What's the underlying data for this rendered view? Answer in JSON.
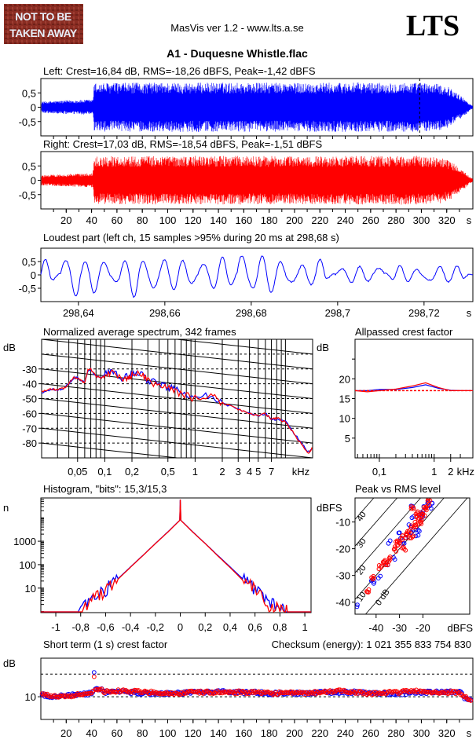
{
  "header": {
    "logo_text": "NOT TO BE TAKEN AWAY",
    "app_title": "MasVis ver 1.2 - www.lts.a.se",
    "brand": "LTS",
    "file_title": "A1 - Duquesne Whistle.flac"
  },
  "colors": {
    "left": "#0000ff",
    "right": "#ff0000",
    "logo_bg": "#8a2c22"
  },
  "chart_data": [
    {
      "id": "left-waveform",
      "type": "area",
      "title": "Left: Crest=16,84 dB, RMS=-18,26 dBFS, Peak=-1,42 dBFS",
      "xlabel": "s",
      "ylim": [
        -1,
        1
      ],
      "xlim": [
        0,
        340.6
      ],
      "yticks": [
        "0,5",
        "0",
        "-0,5"
      ],
      "ytick_values": [
        0.5,
        0,
        -0.5
      ],
      "marker_time": 298.68,
      "envelope_time": [
        0,
        10,
        20,
        30,
        41,
        42,
        60,
        100,
        150,
        200,
        250,
        300,
        315,
        322,
        328,
        334,
        338,
        340.6
      ],
      "envelope_amp": [
        0.2,
        0.22,
        0.24,
        0.25,
        0.27,
        0.85,
        0.85,
        0.86,
        0.86,
        0.85,
        0.86,
        0.86,
        0.8,
        0.7,
        0.5,
        0.3,
        0.12,
        0.05
      ]
    },
    {
      "id": "right-waveform",
      "type": "area",
      "title": "Right: Crest=17,03 dB, RMS=-18,54 dBFS, Peak=-1,51 dBFS",
      "ylim": [
        -1,
        1
      ],
      "xlim": [
        0,
        340.6
      ],
      "yticks": [
        "0,5",
        "0",
        "-0,5"
      ],
      "ytick_values": [
        0.5,
        0,
        -0.5
      ],
      "xticks": [
        "20",
        "40",
        "60",
        "80",
        "100",
        "120",
        "140",
        "160",
        "180",
        "200",
        "220",
        "240",
        "260",
        "280",
        "300",
        "320"
      ],
      "xtick_values": [
        20,
        40,
        60,
        80,
        100,
        120,
        140,
        160,
        180,
        200,
        220,
        240,
        260,
        280,
        300,
        320
      ],
      "xunit": "s",
      "envelope_time": [
        0,
        10,
        20,
        30,
        41,
        42,
        60,
        100,
        150,
        200,
        250,
        300,
        315,
        322,
        328,
        334,
        338,
        340.6
      ],
      "envelope_amp": [
        0.18,
        0.2,
        0.22,
        0.23,
        0.25,
        0.84,
        0.84,
        0.85,
        0.85,
        0.84,
        0.85,
        0.85,
        0.8,
        0.7,
        0.5,
        0.3,
        0.12,
        0.05
      ]
    },
    {
      "id": "loudest-part",
      "type": "line",
      "title": "Loudest part (left  ch, 15 samples >95% during 20 ms at 298,68 s)",
      "xlim": [
        298.6313,
        298.7313
      ],
      "ylim": [
        -1,
        1
      ],
      "xticks": [
        "298,64",
        "298,66",
        "298,68",
        "298,7",
        "298,72"
      ],
      "xtick_values": [
        298.64,
        298.66,
        298.68,
        298.7,
        298.72
      ],
      "xunit": "s",
      "yticks": [
        "0,5",
        "0",
        "-0,5"
      ],
      "ytick_values": [
        0.5,
        0,
        -0.5
      ],
      "cycle_peaks": [
        0.48,
        0.65,
        0.38,
        0.55,
        0.45,
        0.5,
        0.58,
        0.45,
        0.5,
        0.55,
        0.82,
        0.62,
        0.5,
        0.35,
        0.5,
        0.3,
        0.2,
        0.35,
        0.25,
        0.2,
        0.27,
        0.25
      ],
      "cycle_troughs": [
        -0.15,
        -0.78,
        -0.62,
        -0.3,
        -0.72,
        -0.6,
        -0.45,
        -0.35,
        -0.45,
        -0.3,
        -0.55,
        -0.55,
        -0.38,
        -0.25,
        -0.12,
        -0.2,
        -0.18,
        -0.1,
        -0.15,
        -0.3,
        -0.15,
        -0.1
      ]
    },
    {
      "id": "spectrum",
      "type": "line",
      "title": "Normalized average spectrum, 342 frames",
      "ylabel": "dB",
      "xunit": "kHz",
      "xscale": "log",
      "xlim": [
        0.02,
        20
      ],
      "ylim": [
        -90,
        -10
      ],
      "yticks": [
        "-30",
        "-40",
        "-50",
        "-60",
        "-70",
        "-80"
      ],
      "ytick_values": [
        -30,
        -40,
        -50,
        -60,
        -70,
        -80
      ],
      "xticks": [
        "0,05",
        "0,1",
        "0,2",
        "0,5",
        "1",
        "2",
        "3",
        "4",
        "5",
        "7"
      ],
      "xtick_values": [
        0.05,
        0.1,
        0.2,
        0.5,
        1,
        2,
        3,
        4,
        5,
        7
      ],
      "freq_khz": [
        0.02,
        0.025,
        0.03,
        0.035,
        0.04,
        0.045,
        0.05,
        0.055,
        0.06,
        0.065,
        0.07,
        0.08,
        0.09,
        0.1,
        0.12,
        0.15,
        0.18,
        0.2,
        0.25,
        0.3,
        0.4,
        0.5,
        0.6,
        0.8,
        1,
        1.5,
        2,
        3,
        4,
        5,
        6,
        7,
        8,
        10,
        12,
        15,
        18,
        20
      ],
      "series": [
        {
          "values": [
            -46,
            -44,
            -44,
            -43,
            -40,
            -36,
            -36,
            -38,
            -39,
            -32,
            -30,
            -35,
            -36,
            -34,
            -31,
            -37,
            -35,
            -33,
            -32,
            -38,
            -40,
            -42,
            -44,
            -47,
            -47,
            -48,
            -53,
            -57,
            -60,
            -62,
            -60,
            -64,
            -64,
            -65,
            -72,
            -80,
            -86,
            -84
          ]
        },
        {
          "values": [
            -45,
            -44,
            -44,
            -43,
            -40,
            -36,
            -36,
            -38,
            -39,
            -31,
            -30,
            -35,
            -36,
            -35,
            -32,
            -37,
            -36,
            -34,
            -33,
            -38,
            -41,
            -42,
            -45,
            -48,
            -50,
            -48,
            -53,
            -57,
            -60,
            -62,
            -60,
            -64,
            -63,
            -66,
            -72,
            -81,
            -87,
            -83
          ]
        }
      ]
    },
    {
      "id": "allpassed-crest",
      "type": "line",
      "title": "Allpassed crest factor",
      "ylabel": "dB",
      "xunit": "kHz",
      "xscale": "log",
      "xlim": [
        0.036,
        3.2
      ],
      "ylim": [
        0,
        30
      ],
      "yticks": [
        "20",
        "15",
        "10",
        "5"
      ],
      "ytick_values": [
        20,
        15,
        10,
        5
      ],
      "xticks": [
        "0,1",
        "1",
        "2"
      ],
      "xtick_values": [
        0.1,
        1,
        2
      ],
      "reference_level": 17,
      "freq_khz": [
        0.036,
        0.06,
        0.1,
        0.2,
        0.4,
        0.7,
        1.2,
        2,
        3.2
      ],
      "series": [
        {
          "values": [
            17,
            17,
            17.3,
            17.3,
            17.8,
            18.5,
            17.6,
            17.1,
            17
          ]
        },
        {
          "values": [
            17,
            16.7,
            17,
            17.4,
            18.2,
            19,
            17.8,
            17,
            17
          ]
        }
      ]
    },
    {
      "id": "histogram",
      "type": "line",
      "title": "Histogram, \"bits\": 15,3/15,3",
      "ylabel": "n",
      "yscale": "log",
      "ylim": [
        0.9,
        70000
      ],
      "xlim": [
        -1.12,
        1.05
      ],
      "yticks": [
        "1000",
        "100",
        "10"
      ],
      "ytick_values": [
        1000,
        100,
        10
      ],
      "xticks": [
        "-1",
        "-0,8",
        "-0,6",
        "-0,4",
        "-0,2",
        "0",
        "0,2",
        "0,4",
        "0,6",
        "0,8",
        "1"
      ],
      "xtick_values": [
        -1,
        -0.8,
        -0.6,
        -0.4,
        -0.2,
        0,
        0.2,
        0.4,
        0.6,
        0.8,
        1
      ],
      "x": [
        -0.8,
        -0.7,
        -0.6,
        -0.5,
        -0.4,
        -0.3,
        -0.2,
        -0.1,
        -0.005,
        0,
        0.005,
        0.1,
        0.2,
        0.3,
        0.4,
        0.5,
        0.6,
        0.7,
        0.8,
        0.86
      ],
      "series": [
        {
          "values": [
            1,
            3,
            8,
            25,
            80,
            250,
            800,
            2500,
            7800,
            60000,
            7800,
            2500,
            800,
            250,
            80,
            25,
            8,
            3,
            1,
            1
          ]
        },
        {
          "values": [
            1,
            3,
            8,
            24,
            78,
            245,
            790,
            2450,
            7700,
            60000,
            7700,
            2450,
            790,
            240,
            75,
            22,
            7,
            2,
            1,
            1
          ]
        }
      ]
    },
    {
      "id": "peak-vs-rms",
      "type": "scatter",
      "title": "Peak vs RMS level",
      "ylabel": "dBFS",
      "xlabel": "dBFS",
      "xlim": [
        -49,
        0
      ],
      "ylim": [
        -44.5,
        -1
      ],
      "xticks": [
        "-40",
        "-30",
        "-20"
      ],
      "xtick_values": [
        -40,
        -30,
        -20
      ],
      "yticks": [
        "-10",
        "-20",
        "-30",
        "-40"
      ],
      "ytick_values": [
        -10,
        -20,
        -30,
        -40
      ],
      "crest_lines": [
        0,
        10,
        20,
        30,
        40
      ],
      "crest_labels": [
        "0 dB",
        "10",
        "20",
        "30",
        "40"
      ],
      "series": [
        {
          "rms": [
            -48,
            -42,
            -41,
            -39,
            -35,
            -34,
            -32,
            -30,
            -29,
            -28,
            -27,
            -26,
            -25,
            -24,
            -23,
            -22,
            -21,
            -20,
            -19,
            -18,
            -17,
            -16,
            -25,
            -22,
            -20
          ],
          "peak": [
            -41,
            -32,
            -33,
            -31,
            -26,
            -17,
            -24,
            -14,
            -16,
            -18,
            -15,
            -11,
            -14,
            -8,
            -13,
            -15,
            -7,
            -8,
            -5,
            -3,
            -4,
            -3,
            -4,
            -13,
            -6
          ]
        },
        {
          "rms": [
            -44,
            -41,
            -38,
            -37,
            -35,
            -34,
            -32,
            -31,
            -30,
            -29,
            -28,
            -27,
            -26,
            -25,
            -24,
            -23,
            -22,
            -21,
            -20,
            -19,
            -18,
            -17,
            -25,
            -23,
            -21
          ],
          "peak": [
            -36,
            -31,
            -27,
            -25,
            -26,
            -24,
            -20,
            -17,
            -18,
            -16,
            -20,
            -15,
            -14,
            -16,
            -12,
            -11,
            -9,
            -8,
            -7,
            -5,
            -4,
            -2,
            -5,
            -7,
            -10
          ]
        }
      ]
    },
    {
      "id": "short-term-crest",
      "type": "scatter",
      "title": "Short term (1 s) crest factor",
      "checksum": "Checksum (energy):  1 021 355 833 754 830",
      "ylabel": "dB",
      "ylim": [
        0,
        27
      ],
      "xlim": [
        0,
        340.6
      ],
      "yticks": [
        "10"
      ],
      "ytick_values": [
        10
      ],
      "dashed_levels": [
        10,
        20
      ],
      "xticks": [
        "20",
        "40",
        "60",
        "80",
        "100",
        "120",
        "140",
        "160",
        "180",
        "200",
        "220",
        "240",
        "260",
        "280",
        "300",
        "320"
      ],
      "xtick_values": [
        20,
        40,
        60,
        80,
        100,
        120,
        140,
        160,
        180,
        200,
        220,
        240,
        260,
        280,
        300,
        320
      ],
      "xunit": "s",
      "time_s": [
        0,
        10,
        20,
        30,
        40,
        42,
        50,
        60,
        70,
        80,
        90,
        100,
        110,
        120,
        130,
        140,
        150,
        160,
        170,
        180,
        190,
        200,
        210,
        220,
        230,
        240,
        250,
        260,
        270,
        280,
        290,
        300,
        310,
        320,
        330,
        335,
        340
      ],
      "series": [
        {
          "values": [
            11,
            10,
            10.5,
            11,
            11.5,
            20.5,
            12,
            12.5,
            12,
            11.5,
            11.5,
            11.5,
            11.5,
            12,
            12,
            12.5,
            12,
            12,
            12,
            11.5,
            11.5,
            11.5,
            11.5,
            12,
            12,
            12,
            12,
            11.5,
            11.5,
            11.5,
            11.5,
            12,
            12,
            12,
            12.5,
            9,
            8.5
          ]
        },
        {
          "values": [
            11,
            10.5,
            10,
            11,
            11.5,
            19.5,
            12,
            12.5,
            12.5,
            12,
            12,
            11.5,
            11.5,
            12,
            12,
            12,
            12,
            12,
            11.8,
            11.5,
            11.8,
            11.5,
            11.5,
            12,
            12.3,
            12.5,
            12,
            11.5,
            11.8,
            11.8,
            12.5,
            12.3,
            12,
            12,
            12,
            9.5,
            8.5
          ]
        }
      ]
    }
  ]
}
